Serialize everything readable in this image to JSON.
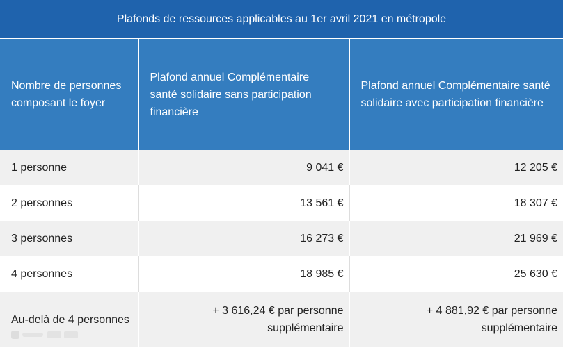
{
  "table": {
    "caption": "Plafonds de ressources applicables au 1er avril 2021 en métropole",
    "headers": [
      "Nombre de personnes composant le foyer",
      "Plafond annuel Complémentaire santé solidaire sans participation financière",
      "Plafond annuel Complémentaire santé solidaire avec participation financière"
    ],
    "rows": [
      [
        "1 personne",
        "9 041 €",
        "12 205 €"
      ],
      [
        "2 personnes",
        "13 561 €",
        "18 307 €"
      ],
      [
        "3 personnes",
        "16 273 €",
        "21 969 €"
      ],
      [
        "4 personnes",
        "18 985 €",
        "25 630 €"
      ],
      [
        "Au-delà de 4 personnes",
        "+ 3 616,24 € par personne supplémentaire",
        "+ 4 881,92 € par personne supplémentaire"
      ]
    ]
  }
}
